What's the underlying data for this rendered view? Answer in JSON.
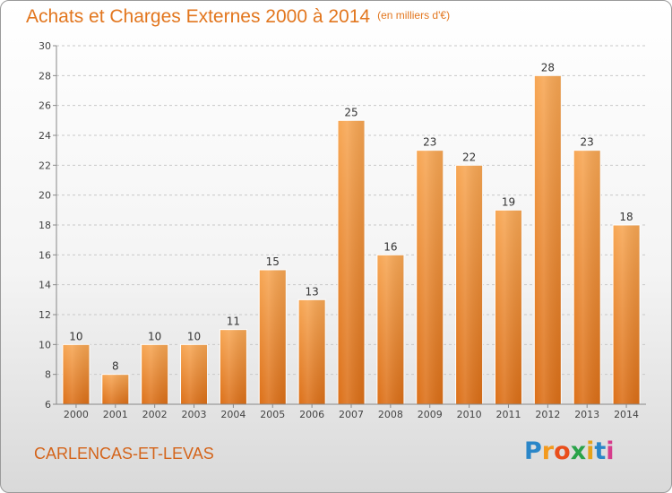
{
  "chart_data": {
    "type": "bar",
    "title": "Achats et Charges Externes 2000 à 2014",
    "subtitle": "(en milliers d'€)",
    "categories": [
      "2000",
      "2001",
      "2002",
      "2003",
      "2004",
      "2005",
      "2006",
      "2007",
      "2008",
      "2009",
      "2010",
      "2011",
      "2012",
      "2013",
      "2014"
    ],
    "values": [
      10,
      8,
      10,
      10,
      11,
      15,
      13,
      25,
      16,
      23,
      22,
      19,
      28,
      23,
      18
    ],
    "ylim": [
      6,
      30
    ],
    "yticks": [
      6,
      8,
      10,
      12,
      14,
      16,
      18,
      20,
      22,
      24,
      26,
      28,
      30
    ],
    "grid": "horizontal dashed",
    "bar_color": "#f0862a",
    "data_labels": true
  },
  "location": "CARLENCAS-ET-LEVAS",
  "brand": {
    "letters": [
      "P",
      "r",
      "o",
      "x",
      "i",
      "t",
      "i"
    ],
    "colors": [
      "#2a86c8",
      "#f39a1e",
      "#e94e1b",
      "#2aa34a",
      "#e6a21a",
      "#2a86c8",
      "#d63c8c"
    ]
  }
}
